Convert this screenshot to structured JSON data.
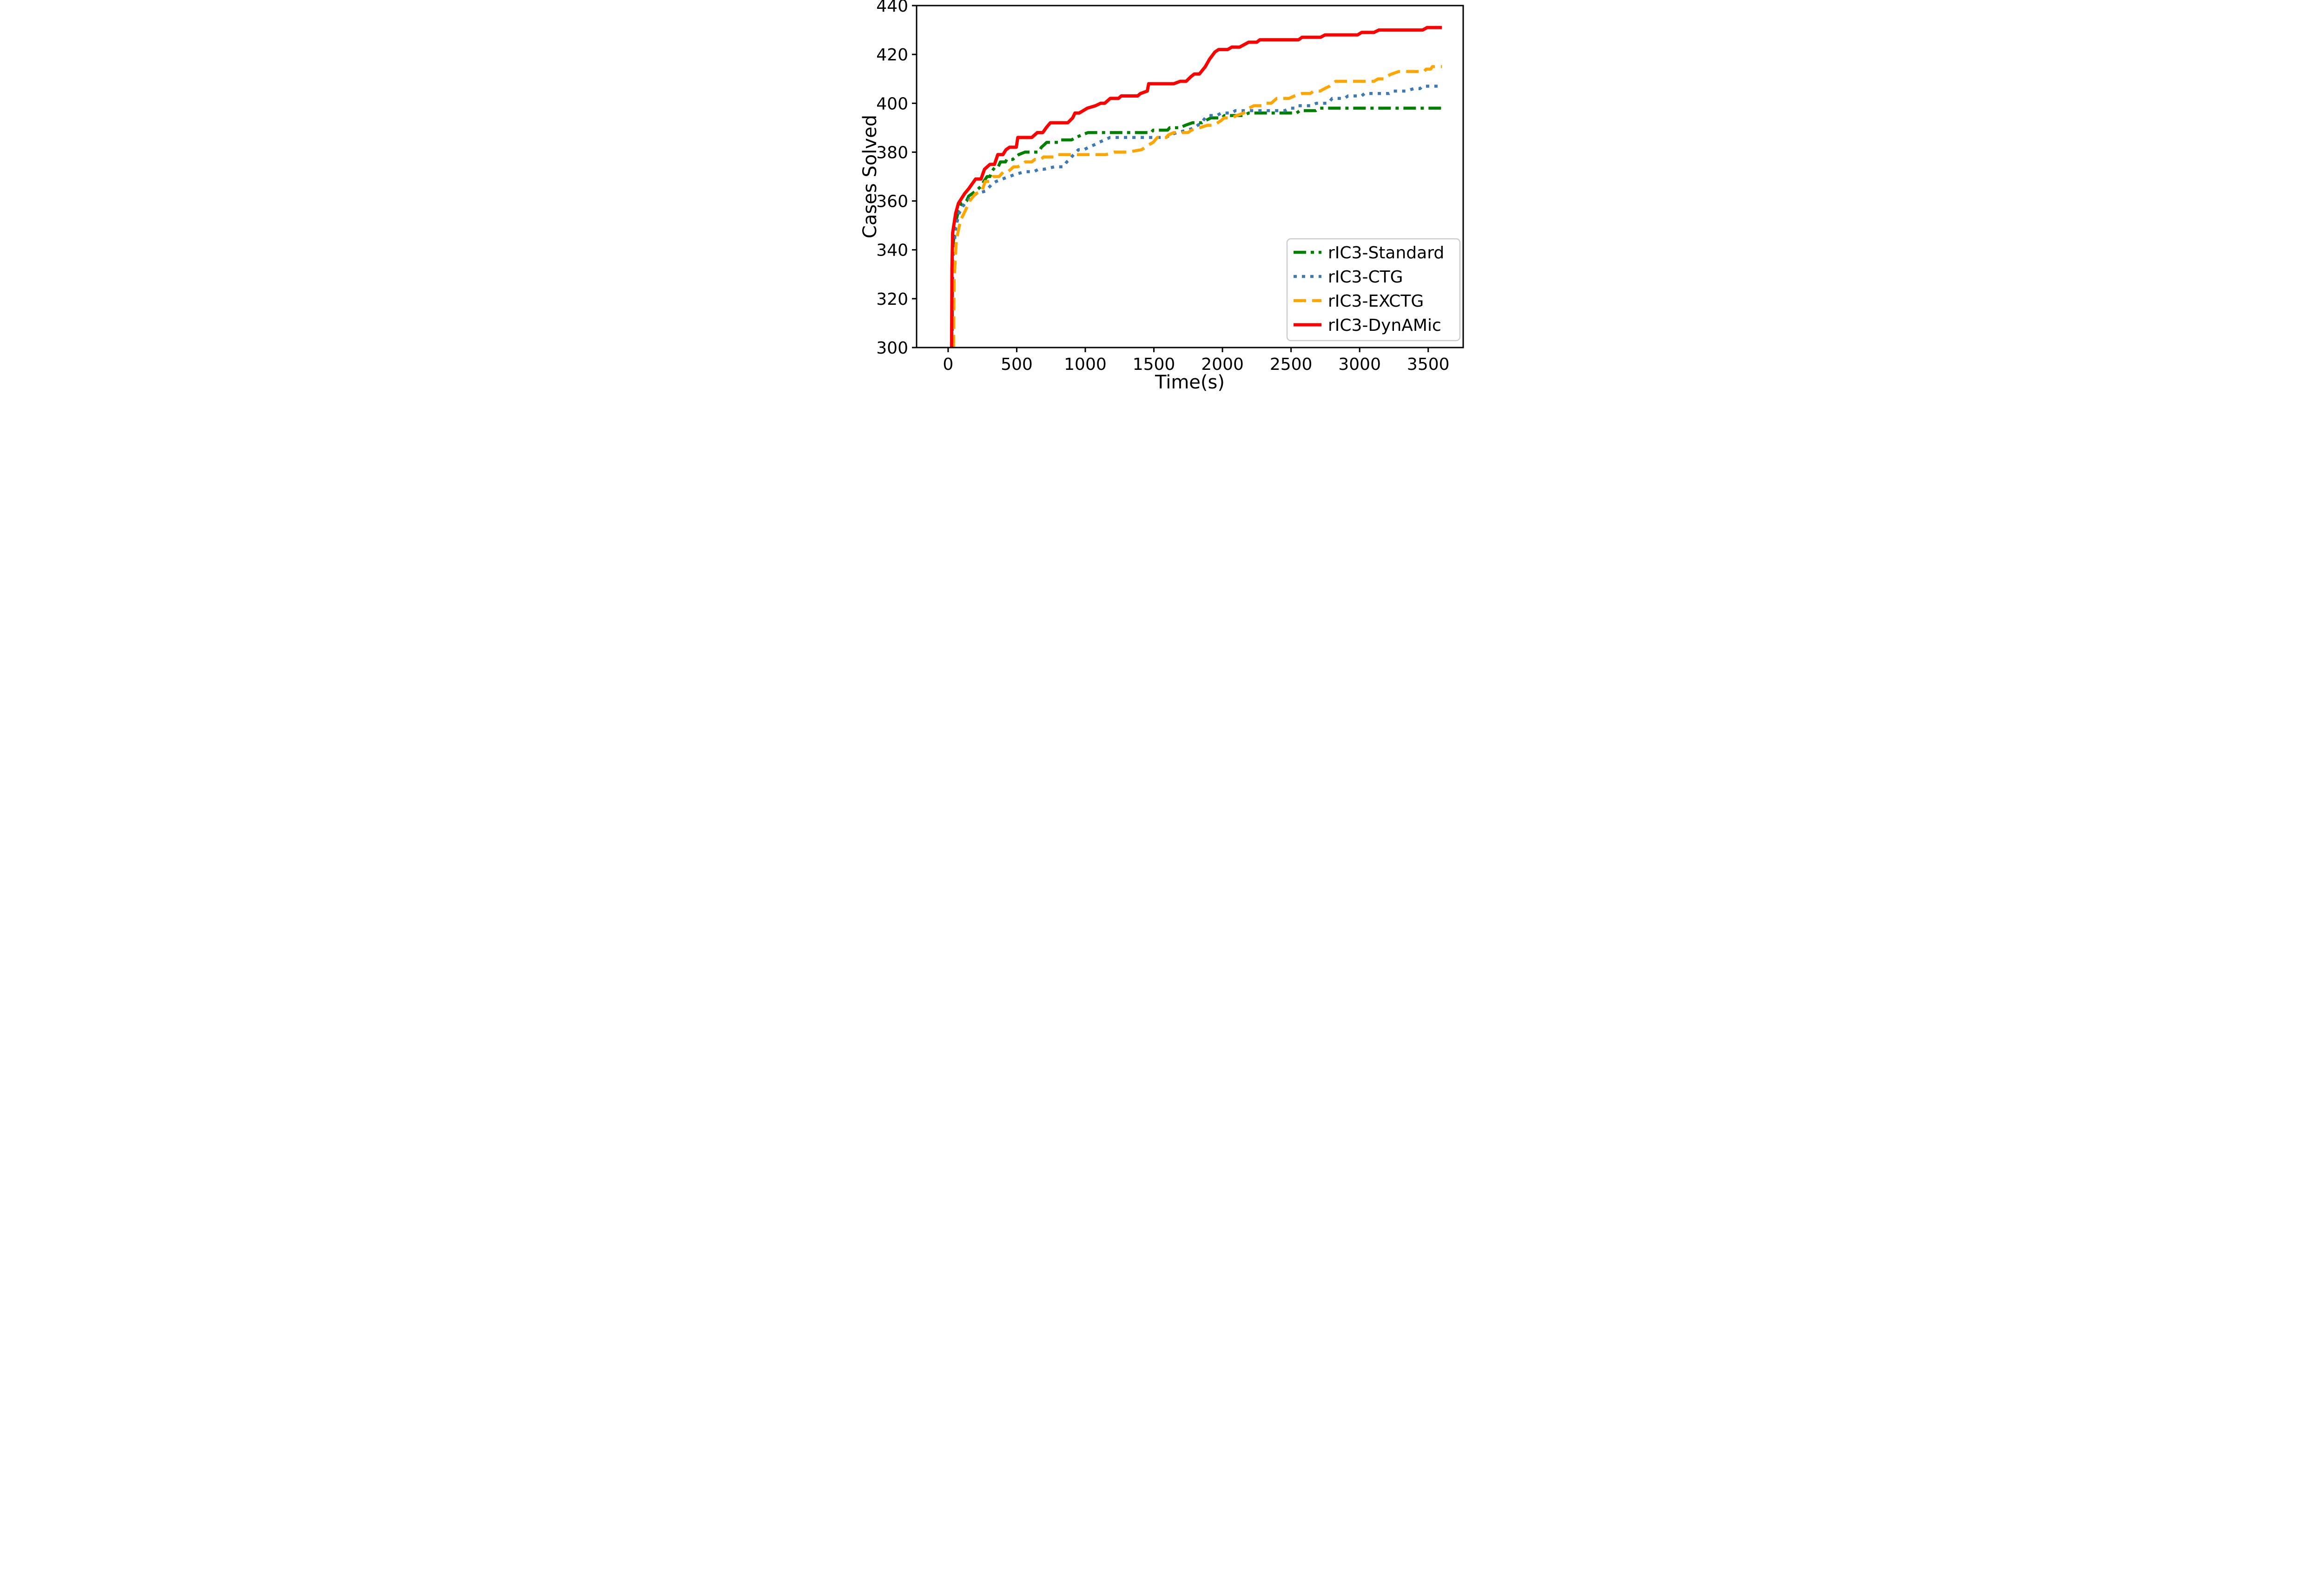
{
  "chart_data": {
    "type": "line",
    "title": "",
    "xlabel": "Time(s)",
    "ylabel": "Cases Solved",
    "xlim": [
      -230,
      3755
    ],
    "ylim": [
      300,
      440
    ],
    "xticks": [
      0,
      500,
      1000,
      1500,
      2000,
      2500,
      3000,
      3500
    ],
    "yticks": [
      300,
      320,
      340,
      360,
      380,
      400,
      420,
      440
    ],
    "grid": false,
    "legend_position": "lower right",
    "axis_color": "#000000",
    "legend_border_color": "#cccccc",
    "series": [
      {
        "name": "rIC3-Standard",
        "color": "#008000",
        "style": "dashdot",
        "points": [
          [
            30,
            300
          ],
          [
            33,
            340
          ],
          [
            50,
            350
          ],
          [
            75,
            356
          ],
          [
            100,
            359
          ],
          [
            134,
            360
          ],
          [
            150,
            362
          ],
          [
            200,
            364
          ],
          [
            240,
            366
          ],
          [
            260,
            368
          ],
          [
            284,
            370
          ],
          [
            305,
            370
          ],
          [
            318,
            372
          ],
          [
            330,
            373
          ],
          [
            345,
            374
          ],
          [
            365,
            374
          ],
          [
            381,
            376
          ],
          [
            418,
            376
          ],
          [
            428,
            377
          ],
          [
            471,
            377
          ],
          [
            490,
            378
          ],
          [
            515,
            379
          ],
          [
            560,
            380
          ],
          [
            658,
            380
          ],
          [
            680,
            382
          ],
          [
            700,
            383
          ],
          [
            718,
            384
          ],
          [
            808,
            384
          ],
          [
            820,
            385
          ],
          [
            900,
            385
          ],
          [
            930,
            386
          ],
          [
            975,
            387
          ],
          [
            1019,
            388
          ],
          [
            1480,
            388
          ],
          [
            1495,
            389
          ],
          [
            1600,
            389
          ],
          [
            1615,
            390
          ],
          [
            1690,
            390
          ],
          [
            1730,
            391
          ],
          [
            1780,
            392
          ],
          [
            1850,
            392
          ],
          [
            1880,
            393
          ],
          [
            1915,
            394
          ],
          [
            1995,
            394
          ],
          [
            2015,
            395
          ],
          [
            2160,
            395
          ],
          [
            2190,
            396
          ],
          [
            2540,
            396
          ],
          [
            2565,
            397
          ],
          [
            2680,
            397
          ],
          [
            2705,
            398
          ],
          [
            3600,
            398
          ]
        ]
      },
      {
        "name": "rIC3-CTG",
        "color": "#3d79b4",
        "style": "dotted",
        "points": [
          [
            30,
            300
          ],
          [
            34,
            336
          ],
          [
            55,
            349
          ],
          [
            80,
            355
          ],
          [
            110,
            358
          ],
          [
            135,
            360
          ],
          [
            160,
            361
          ],
          [
            205,
            363
          ],
          [
            270,
            364
          ],
          [
            305,
            366
          ],
          [
            320,
            367
          ],
          [
            350,
            368
          ],
          [
            395,
            369
          ],
          [
            445,
            370
          ],
          [
            495,
            371
          ],
          [
            560,
            372
          ],
          [
            625,
            372
          ],
          [
            660,
            373
          ],
          [
            700,
            373
          ],
          [
            775,
            374
          ],
          [
            840,
            374
          ],
          [
            865,
            376
          ],
          [
            885,
            377
          ],
          [
            915,
            379
          ],
          [
            950,
            381
          ],
          [
            990,
            381
          ],
          [
            1025,
            382
          ],
          [
            1065,
            383
          ],
          [
            1100,
            384
          ],
          [
            1140,
            385
          ],
          [
            1180,
            386
          ],
          [
            1590,
            386
          ],
          [
            1615,
            387
          ],
          [
            1670,
            388
          ],
          [
            1745,
            389
          ],
          [
            1795,
            390
          ],
          [
            1845,
            392
          ],
          [
            1875,
            394
          ],
          [
            1900,
            395
          ],
          [
            1960,
            395
          ],
          [
            1990,
            396
          ],
          [
            2065,
            396
          ],
          [
            2095,
            397
          ],
          [
            2455,
            397
          ],
          [
            2485,
            398
          ],
          [
            2525,
            398
          ],
          [
            2545,
            399
          ],
          [
            2645,
            399
          ],
          [
            2685,
            400
          ],
          [
            2770,
            400
          ],
          [
            2800,
            402
          ],
          [
            2890,
            402
          ],
          [
            2915,
            403
          ],
          [
            3015,
            403
          ],
          [
            3035,
            404
          ],
          [
            3215,
            404
          ],
          [
            3245,
            405
          ],
          [
            3335,
            405
          ],
          [
            3395,
            406
          ],
          [
            3440,
            406
          ],
          [
            3460,
            407
          ],
          [
            3600,
            407
          ]
        ]
      },
      {
        "name": "rIC3-EXCTG",
        "color": "#ffa500",
        "style": "dashed",
        "points": [
          [
            40,
            300
          ],
          [
            44,
            328
          ],
          [
            60,
            344
          ],
          [
            90,
            352
          ],
          [
            125,
            356
          ],
          [
            157,
            360
          ],
          [
            200,
            363
          ],
          [
            248,
            364
          ],
          [
            258,
            366
          ],
          [
            270,
            368
          ],
          [
            308,
            368
          ],
          [
            327,
            370
          ],
          [
            371,
            370
          ],
          [
            388,
            371
          ],
          [
            405,
            372
          ],
          [
            436,
            372
          ],
          [
            458,
            373
          ],
          [
            478,
            374
          ],
          [
            508,
            374
          ],
          [
            540,
            375
          ],
          [
            562,
            376
          ],
          [
            610,
            376
          ],
          [
            632,
            377
          ],
          [
            676,
            377
          ],
          [
            695,
            378
          ],
          [
            775,
            378
          ],
          [
            790,
            379
          ],
          [
            1150,
            379
          ],
          [
            1210,
            380
          ],
          [
            1310,
            380
          ],
          [
            1410,
            381
          ],
          [
            1440,
            382
          ],
          [
            1462,
            383
          ],
          [
            1495,
            384
          ],
          [
            1525,
            386
          ],
          [
            1590,
            386
          ],
          [
            1605,
            387
          ],
          [
            1645,
            388
          ],
          [
            1748,
            388
          ],
          [
            1775,
            389
          ],
          [
            1835,
            390
          ],
          [
            1890,
            391
          ],
          [
            1935,
            391
          ],
          [
            1965,
            392
          ],
          [
            1992,
            393
          ],
          [
            2012,
            394
          ],
          [
            2068,
            394
          ],
          [
            2105,
            395
          ],
          [
            2155,
            396
          ],
          [
            2192,
            398
          ],
          [
            2230,
            399
          ],
          [
            2285,
            399
          ],
          [
            2305,
            400
          ],
          [
            2355,
            400
          ],
          [
            2395,
            402
          ],
          [
            2485,
            402
          ],
          [
            2525,
            403
          ],
          [
            2580,
            404
          ],
          [
            2640,
            404
          ],
          [
            2665,
            405
          ],
          [
            2712,
            405
          ],
          [
            2745,
            406
          ],
          [
            2780,
            407
          ],
          [
            2800,
            408
          ],
          [
            2825,
            409
          ],
          [
            3105,
            409
          ],
          [
            3135,
            410
          ],
          [
            3178,
            410
          ],
          [
            3195,
            411
          ],
          [
            3235,
            412
          ],
          [
            3285,
            413
          ],
          [
            3470,
            413
          ],
          [
            3485,
            414
          ],
          [
            3518,
            414
          ],
          [
            3530,
            415
          ],
          [
            3600,
            415
          ]
        ]
      },
      {
        "name": "rIC3-DynAMic",
        "color": "#ff0000",
        "style": "solid",
        "points": [
          [
            25,
            300
          ],
          [
            28,
            332
          ],
          [
            33,
            347
          ],
          [
            55,
            355
          ],
          [
            75,
            359
          ],
          [
            120,
            363
          ],
          [
            150,
            365
          ],
          [
            200,
            369
          ],
          [
            240,
            369
          ],
          [
            265,
            373
          ],
          [
            285,
            374
          ],
          [
            305,
            375
          ],
          [
            338,
            375
          ],
          [
            362,
            379
          ],
          [
            400,
            379
          ],
          [
            422,
            381
          ],
          [
            448,
            382
          ],
          [
            497,
            382
          ],
          [
            508,
            386
          ],
          [
            610,
            386
          ],
          [
            630,
            387
          ],
          [
            650,
            388
          ],
          [
            690,
            388
          ],
          [
            715,
            390
          ],
          [
            745,
            392
          ],
          [
            872,
            392
          ],
          [
            908,
            394
          ],
          [
            925,
            396
          ],
          [
            955,
            396
          ],
          [
            985,
            397
          ],
          [
            1015,
            398
          ],
          [
            1075,
            399
          ],
          [
            1112,
            400
          ],
          [
            1142,
            400
          ],
          [
            1182,
            402
          ],
          [
            1242,
            402
          ],
          [
            1262,
            403
          ],
          [
            1382,
            403
          ],
          [
            1402,
            404
          ],
          [
            1452,
            405
          ],
          [
            1462,
            408
          ],
          [
            1645,
            408
          ],
          [
            1692,
            409
          ],
          [
            1735,
            409
          ],
          [
            1772,
            411
          ],
          [
            1795,
            412
          ],
          [
            1832,
            412
          ],
          [
            1875,
            415
          ],
          [
            1905,
            418
          ],
          [
            1945,
            421
          ],
          [
            1972,
            422
          ],
          [
            2038,
            422
          ],
          [
            2068,
            423
          ],
          [
            2125,
            423
          ],
          [
            2190,
            425
          ],
          [
            2250,
            425
          ],
          [
            2272,
            426
          ],
          [
            2555,
            426
          ],
          [
            2580,
            427
          ],
          [
            2715,
            427
          ],
          [
            2748,
            428
          ],
          [
            2985,
            428
          ],
          [
            3015,
            429
          ],
          [
            3105,
            429
          ],
          [
            3140,
            430
          ],
          [
            3460,
            430
          ],
          [
            3492,
            431
          ],
          [
            3600,
            431
          ]
        ]
      }
    ]
  }
}
